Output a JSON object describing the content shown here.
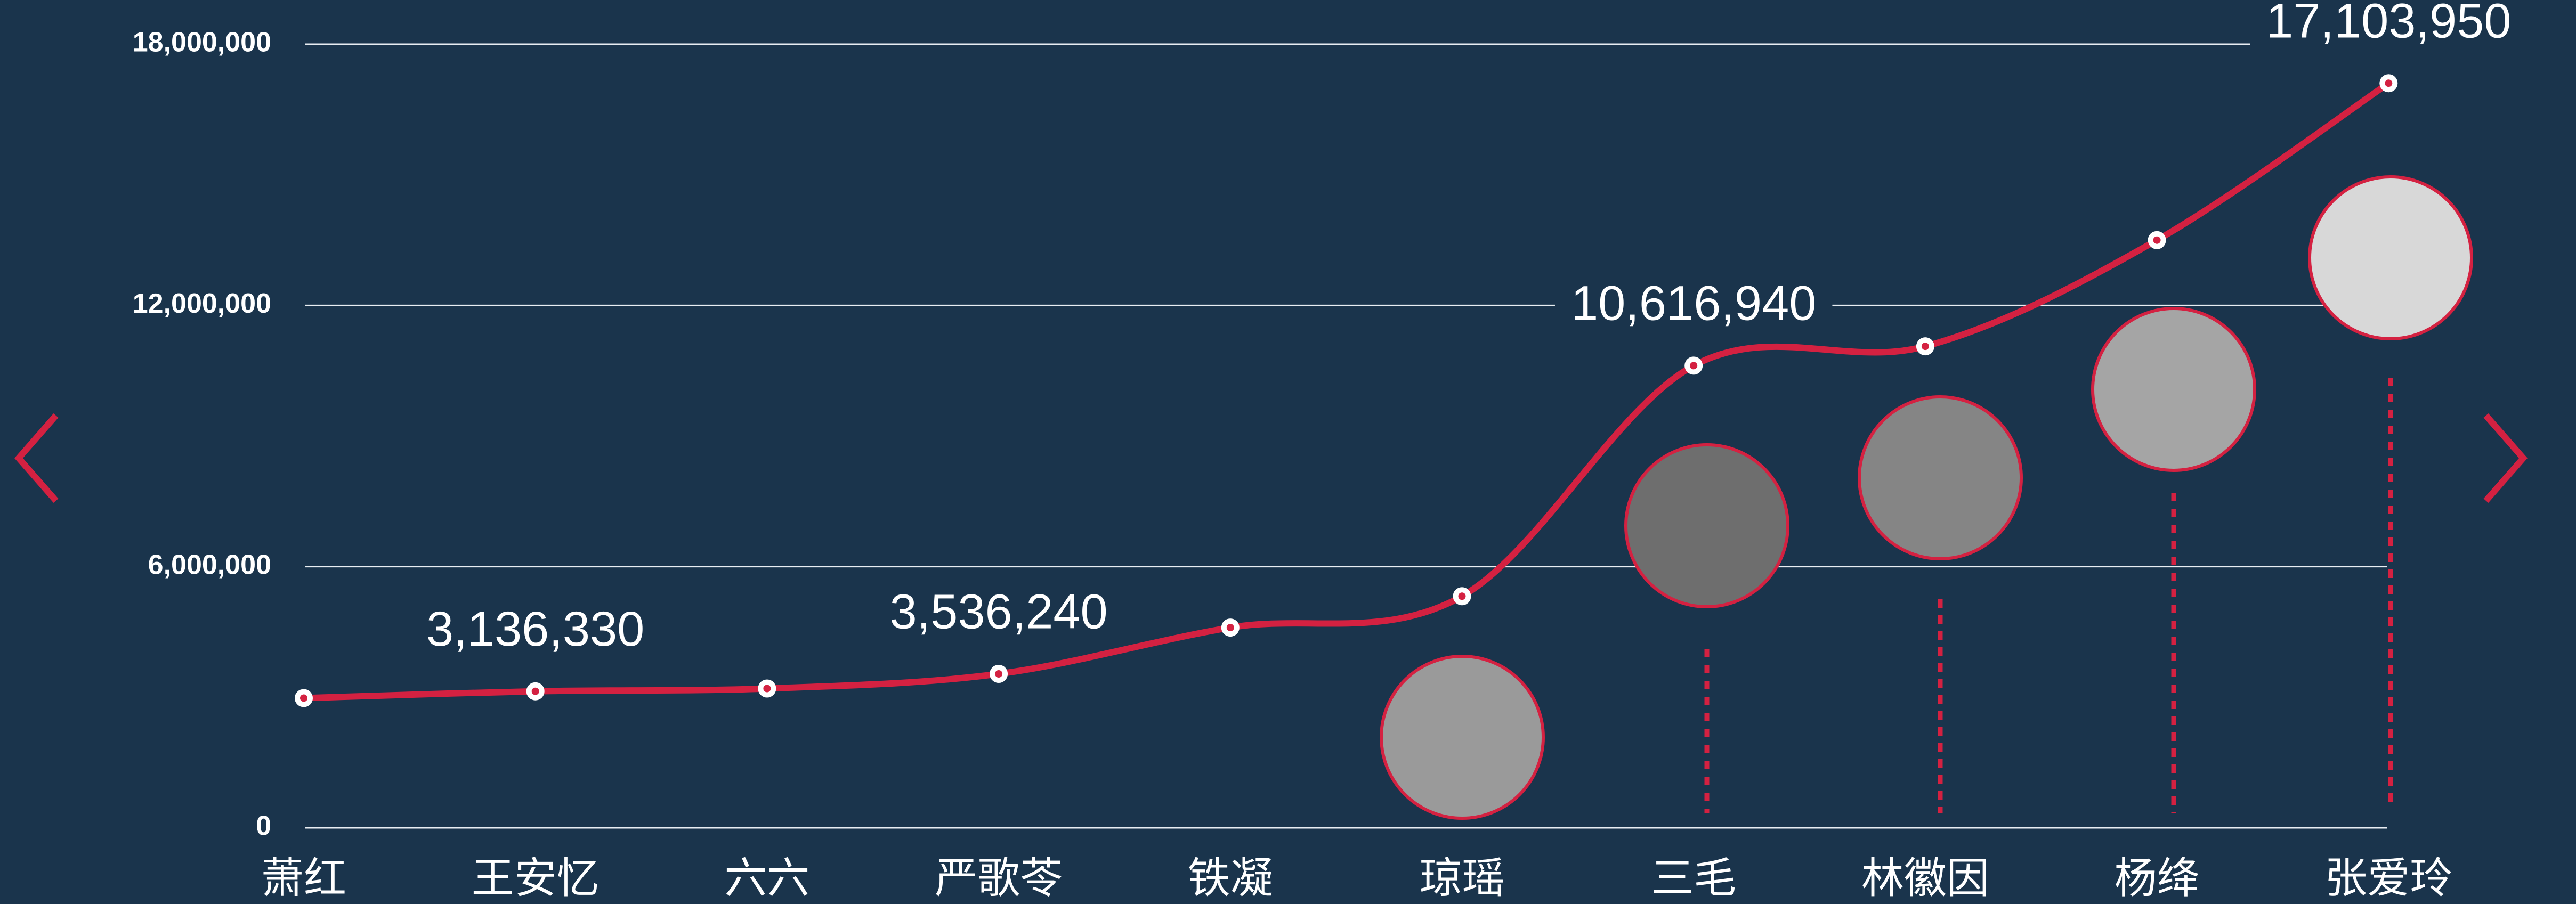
{
  "chart_data": {
    "type": "line",
    "categories": [
      "萧红",
      "王安忆",
      "六六",
      "严歌苓",
      "铁凝",
      "琼瑶",
      "三毛",
      "林徽因",
      "杨绛",
      "张爱玲"
    ],
    "series": [
      {
        "color": "#d42141",
        "values": [
          2980000,
          3136330,
          3200000,
          3536240,
          4600000,
          5320000,
          10616940,
          11060000,
          13500000,
          17103950
        ],
        "value_labels": [
          null,
          "3,136,330",
          null,
          "3,536,240",
          null,
          null,
          "10,616,940",
          null,
          null,
          "17,103,950"
        ]
      }
    ],
    "ylim": [
      0,
      18000000
    ],
    "yticks": [
      0,
      {
        "value": 6000000,
        "label": "6,000,000"
      },
      {
        "value": 12000000,
        "label": "12,000,000"
      },
      {
        "value": 18000000,
        "label": "18,000,000"
      }
    ],
    "grid": true
  }
}
